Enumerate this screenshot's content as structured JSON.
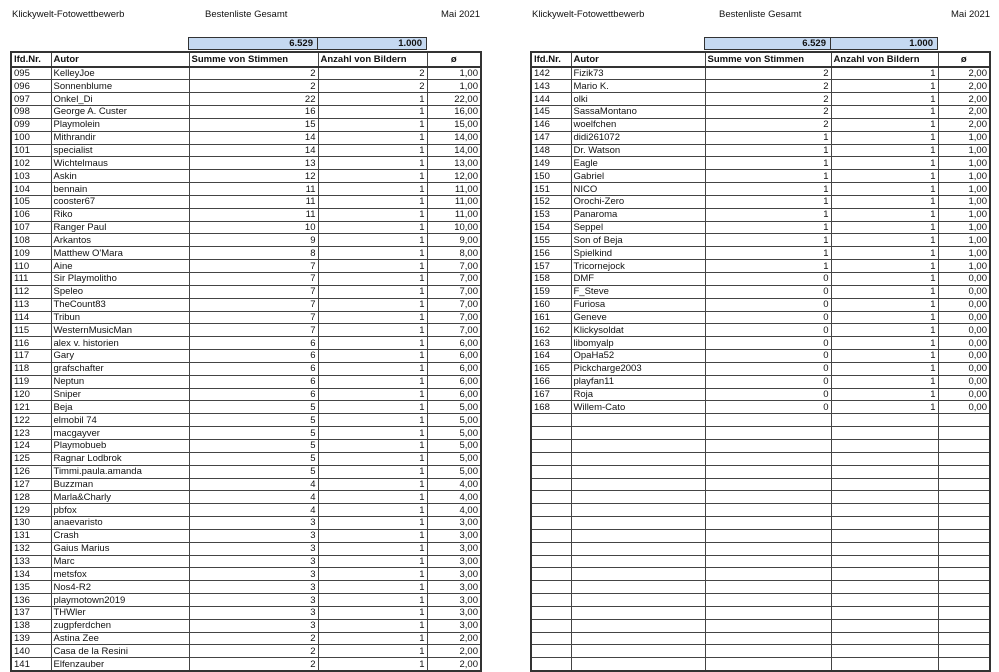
{
  "header": {
    "title": "Klickywelt-Fotowettbewerb",
    "subtitle": "Bestenliste Gesamt",
    "date": "Mai 2021"
  },
  "totals": {
    "votes": "6.529",
    "images": "1.000"
  },
  "columns": [
    "lfd.Nr.",
    "Autor",
    "Summe von Stimmen",
    "Anzahl von Bildern",
    "ø"
  ],
  "left_rows": [
    [
      "095",
      "KelleyJoe",
      "2",
      "2",
      "1,00"
    ],
    [
      "096",
      "Sonnenblume",
      "2",
      "2",
      "1,00"
    ],
    [
      "097",
      "Onkel_Di",
      "22",
      "1",
      "22,00"
    ],
    [
      "098",
      "George A. Custer",
      "16",
      "1",
      "16,00"
    ],
    [
      "099",
      "Playmolein",
      "15",
      "1",
      "15,00"
    ],
    [
      "100",
      "Mithrandir",
      "14",
      "1",
      "14,00"
    ],
    [
      "101",
      "specialist",
      "14",
      "1",
      "14,00"
    ],
    [
      "102",
      "Wichtelmaus",
      "13",
      "1",
      "13,00"
    ],
    [
      "103",
      "Askin",
      "12",
      "1",
      "12,00"
    ],
    [
      "104",
      "bennain",
      "11",
      "1",
      "11,00"
    ],
    [
      "105",
      "cooster67",
      "11",
      "1",
      "11,00"
    ],
    [
      "106",
      "Riko",
      "11",
      "1",
      "11,00"
    ],
    [
      "107",
      "Ranger Paul",
      "10",
      "1",
      "10,00"
    ],
    [
      "108",
      "Arkantos",
      "9",
      "1",
      "9,00"
    ],
    [
      "109",
      "Matthew O'Mara",
      "8",
      "1",
      "8,00"
    ],
    [
      "110",
      "Aine",
      "7",
      "1",
      "7,00"
    ],
    [
      "111",
      "Sir Playmolitho",
      "7",
      "1",
      "7,00"
    ],
    [
      "112",
      "Speleo",
      "7",
      "1",
      "7,00"
    ],
    [
      "113",
      "TheCount83",
      "7",
      "1",
      "7,00"
    ],
    [
      "114",
      "Tribun",
      "7",
      "1",
      "7,00"
    ],
    [
      "115",
      "WesternMusicMan",
      "7",
      "1",
      "7,00"
    ],
    [
      "116",
      "alex v. historien",
      "6",
      "1",
      "6,00"
    ],
    [
      "117",
      "Gary",
      "6",
      "1",
      "6,00"
    ],
    [
      "118",
      "grafschafter",
      "6",
      "1",
      "6,00"
    ],
    [
      "119",
      "Neptun",
      "6",
      "1",
      "6,00"
    ],
    [
      "120",
      "Sniper",
      "6",
      "1",
      "6,00"
    ],
    [
      "121",
      "Beja",
      "5",
      "1",
      "5,00"
    ],
    [
      "122",
      "elmobil 74",
      "5",
      "1",
      "5,00"
    ],
    [
      "123",
      "macgayver",
      "5",
      "1",
      "5,00"
    ],
    [
      "124",
      "Playmobueb",
      "5",
      "1",
      "5,00"
    ],
    [
      "125",
      "Ragnar Lodbrok",
      "5",
      "1",
      "5,00"
    ],
    [
      "126",
      "Timmi.paula.amanda",
      "5",
      "1",
      "5,00"
    ],
    [
      "127",
      "Buzzman",
      "4",
      "1",
      "4,00"
    ],
    [
      "128",
      "Marla&Charly",
      "4",
      "1",
      "4,00"
    ],
    [
      "129",
      "pbfox",
      "4",
      "1",
      "4,00"
    ],
    [
      "130",
      "anaevaristo",
      "3",
      "1",
      "3,00"
    ],
    [
      "131",
      "Crash",
      "3",
      "1",
      "3,00"
    ],
    [
      "132",
      "Gaius Marius",
      "3",
      "1",
      "3,00"
    ],
    [
      "133",
      "Marc",
      "3",
      "1",
      "3,00"
    ],
    [
      "134",
      "metsfox",
      "3",
      "1",
      "3,00"
    ],
    [
      "135",
      "Nos4-R2",
      "3",
      "1",
      "3,00"
    ],
    [
      "136",
      "playmotown2019",
      "3",
      "1",
      "3,00"
    ],
    [
      "137",
      "THWler",
      "3",
      "1",
      "3,00"
    ],
    [
      "138",
      "zugpferdchen",
      "3",
      "1",
      "3,00"
    ],
    [
      "139",
      "Astina Zee",
      "2",
      "1",
      "2,00"
    ],
    [
      "140",
      "Casa de la Resini",
      "2",
      "1",
      "2,00"
    ],
    [
      "141",
      "Elfenzauber",
      "2",
      "1",
      "2,00"
    ]
  ],
  "right_rows": [
    [
      "142",
      "Fizik73",
      "2",
      "1",
      "2,00"
    ],
    [
      "143",
      "Mario K.",
      "2",
      "1",
      "2,00"
    ],
    [
      "144",
      "olki",
      "2",
      "1",
      "2,00"
    ],
    [
      "145",
      "SassaMontano",
      "2",
      "1",
      "2,00"
    ],
    [
      "146",
      "woelfchen",
      "2",
      "1",
      "2,00"
    ],
    [
      "147",
      "didi261072",
      "1",
      "1",
      "1,00"
    ],
    [
      "148",
      "Dr. Watson",
      "1",
      "1",
      "1,00"
    ],
    [
      "149",
      "Eagle",
      "1",
      "1",
      "1,00"
    ],
    [
      "150",
      "Gabriel",
      "1",
      "1",
      "1,00"
    ],
    [
      "151",
      "NICO",
      "1",
      "1",
      "1,00"
    ],
    [
      "152",
      "Orochi-Zero",
      "1",
      "1",
      "1,00"
    ],
    [
      "153",
      "Panaroma",
      "1",
      "1",
      "1,00"
    ],
    [
      "154",
      "Seppel",
      "1",
      "1",
      "1,00"
    ],
    [
      "155",
      "Son of Beja",
      "1",
      "1",
      "1,00"
    ],
    [
      "156",
      "Spielkind",
      "1",
      "1",
      "1,00"
    ],
    [
      "157",
      "Tricornejock",
      "1",
      "1",
      "1,00"
    ],
    [
      "158",
      "DMF",
      "0",
      "1",
      "0,00"
    ],
    [
      "159",
      "F_Steve",
      "0",
      "1",
      "0,00"
    ],
    [
      "160",
      "Furiosa",
      "0",
      "1",
      "0,00"
    ],
    [
      "161",
      "Geneve",
      "0",
      "1",
      "0,00"
    ],
    [
      "162",
      "Klickysoldat",
      "0",
      "1",
      "0,00"
    ],
    [
      "163",
      "libomyalp",
      "0",
      "1",
      "0,00"
    ],
    [
      "164",
      "OpaHa52",
      "0",
      "1",
      "0,00"
    ],
    [
      "165",
      "Pickcharge2003",
      "0",
      "1",
      "0,00"
    ],
    [
      "166",
      "playfan11",
      "0",
      "1",
      "0,00"
    ],
    [
      "167",
      "Roja",
      "0",
      "1",
      "0,00"
    ],
    [
      "168",
      "Willem-Cato",
      "0",
      "1",
      "0,00"
    ]
  ],
  "colors": {
    "totals_fill": "#c5d9f1"
  }
}
